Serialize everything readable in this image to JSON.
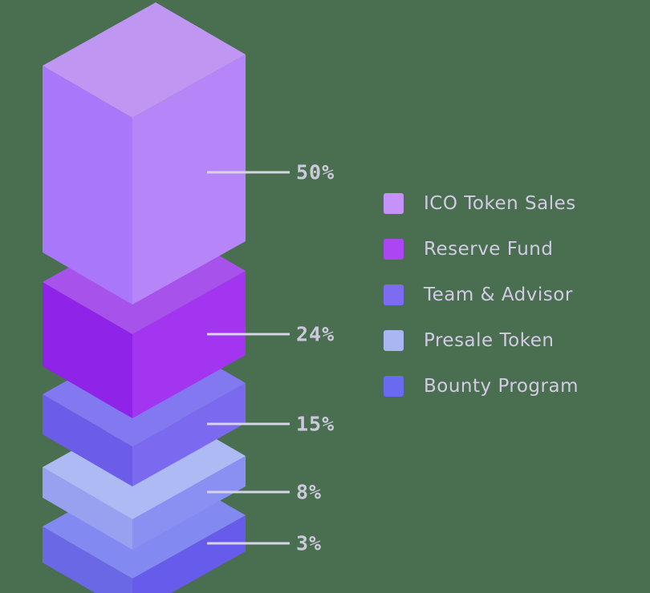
{
  "background_color": "#4a6f50",
  "chart_data": {
    "type": "bar",
    "subtype": "isometric-stacked-allocation",
    "title": "",
    "categories": [
      "ICO Token Sales",
      "Reserve Fund",
      "Team & Advisor",
      "Presale Token",
      "Bounty Program"
    ],
    "values": [
      50,
      24,
      15,
      8,
      3
    ],
    "unit": "%",
    "legend_position": "right",
    "leader_line_color": "#d6d3e4",
    "pct_text_color": "#cdc9dc",
    "legend_text_color": "#d2cbe4",
    "segments": [
      {
        "label": "ICO Token Sales",
        "value": 50,
        "pct_label": "50%",
        "legend_color": "#c492f8",
        "face_top": "#bf97f3",
        "face_left": "#a977fa",
        "face_right": "#b685f8"
      },
      {
        "label": "Reserve Fund",
        "value": 24,
        "pct_label": "24%",
        "legend_color": "#ab46f2",
        "face_top": "#a852ec",
        "face_left": "#9023e8",
        "face_right": "#a335f1"
      },
      {
        "label": "Team & Advisor",
        "value": 15,
        "pct_label": "15%",
        "legend_color": "#7d6cf2",
        "face_top": "#8278ef",
        "face_left": "#6b5de8",
        "face_right": "#7b69f0"
      },
      {
        "label": "Presale Token",
        "value": 8,
        "pct_label": "8%",
        "legend_color": "#aab6f2",
        "face_top": "#aebaf4",
        "face_left": "#97a1f0",
        "face_right": "#8a8ff2"
      },
      {
        "label": "Bounty Program",
        "value": 3,
        "pct_label": "3%",
        "legend_color": "#6a6af0",
        "face_top": "#8289f0",
        "face_left": "#6b68e6",
        "face_right": "#675bec"
      }
    ]
  }
}
